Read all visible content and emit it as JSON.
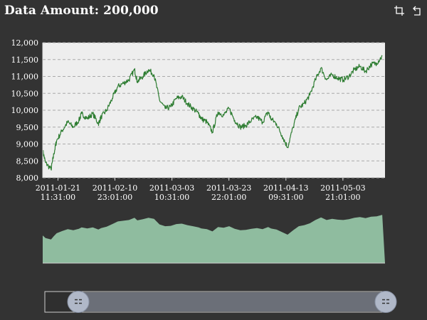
{
  "title": "Data Amount: 200,000",
  "toolbox": {
    "zoom_icon": "data-zoom-icon",
    "reset_icon": "zoom-reset-icon"
  },
  "colors": {
    "background": "#333333",
    "plot_background": "#eeeeee",
    "line": "#2e7d32",
    "overview_fill": "#8fbc9f",
    "slider_fill": "#6b6f78",
    "slider_handle": "#b0b8c8",
    "text": "#ffffff"
  },
  "chart_data": {
    "type": "line",
    "title": "Data Amount: 200,000",
    "xlabel": "",
    "ylabel": "",
    "ylim": [
      8000,
      12000
    ],
    "yticks": [
      "8,000",
      "8,500",
      "9,000",
      "9,500",
      "10,000",
      "10,500",
      "11,000",
      "11,500",
      "12,000"
    ],
    "ytick_values": [
      8000,
      8500,
      9000,
      9500,
      10000,
      10500,
      11000,
      11500,
      12000
    ],
    "xlim": [
      "2011-01-16 00:00",
      "2011-05-19 00:00"
    ],
    "xticks": [
      {
        "date": "2011-01-21",
        "time": "11:31:00",
        "at": "2011-01-21 11:31"
      },
      {
        "date": "2011-02-10",
        "time": "23:01:00",
        "at": "2011-02-10 23:01"
      },
      {
        "date": "2011-03-03",
        "time": "10:31:00",
        "at": "2011-03-03 10:31"
      },
      {
        "date": "2011-03-23",
        "time": "22:01:00",
        "at": "2011-03-23 22:01"
      },
      {
        "date": "2011-04-13",
        "time": "09:31:00",
        "at": "2011-04-13 09:31"
      },
      {
        "date": "2011-05-03",
        "time": "21:01:00",
        "at": "2011-05-03 21:01"
      }
    ],
    "grid": true,
    "series": [
      {
        "x": [
          "2011-01-16",
          "2011-01-17",
          "2011-01-19",
          "2011-01-20",
          "2011-01-21",
          "2011-01-23",
          "2011-01-25",
          "2011-01-27",
          "2011-01-29",
          "2011-01-30",
          "2011-02-01",
          "2011-02-03",
          "2011-02-05",
          "2011-02-06",
          "2011-02-08",
          "2011-02-10",
          "2011-02-12",
          "2011-02-14",
          "2011-02-16",
          "2011-02-18",
          "2011-02-19",
          "2011-02-21",
          "2011-02-23",
          "2011-02-25",
          "2011-02-27",
          "2011-03-01",
          "2011-03-03",
          "2011-03-05",
          "2011-03-07",
          "2011-03-09",
          "2011-03-11",
          "2011-03-13",
          "2011-03-14",
          "2011-03-16",
          "2011-03-18",
          "2011-03-20",
          "2011-03-22",
          "2011-03-24",
          "2011-03-26",
          "2011-03-28",
          "2011-03-30",
          "2011-04-01",
          "2011-04-03",
          "2011-04-05",
          "2011-04-07",
          "2011-04-08",
          "2011-04-10",
          "2011-04-12",
          "2011-04-14",
          "2011-04-16",
          "2011-04-18",
          "2011-04-20",
          "2011-04-22",
          "2011-04-24",
          "2011-04-26",
          "2011-04-28",
          "2011-04-30",
          "2011-05-02",
          "2011-05-04",
          "2011-05-06",
          "2011-05-08",
          "2011-05-10",
          "2011-05-12",
          "2011-05-14",
          "2011-05-16",
          "2011-05-18"
        ],
        "y": [
          8800,
          8450,
          8250,
          8700,
          9100,
          9400,
          9650,
          9500,
          9700,
          9900,
          9750,
          9900,
          9600,
          9800,
          10000,
          10350,
          10700,
          10800,
          10900,
          11200,
          10850,
          11000,
          11200,
          11050,
          10300,
          10050,
          10100,
          10350,
          10400,
          10200,
          10050,
          9900,
          9750,
          9650,
          9350,
          9950,
          9850,
          10050,
          9700,
          9500,
          9550,
          9700,
          9800,
          9650,
          9950,
          9750,
          9600,
          9250,
          8900,
          9500,
          10050,
          10200,
          10450,
          10900,
          11250,
          10900,
          11050,
          10950,
          10900,
          11000,
          11200,
          11300,
          11150,
          11350,
          11400,
          11600
        ]
      }
    ],
    "overview_y": [
      8800,
      8450,
      8250,
      8700,
      9100,
      9400,
      9650,
      9500,
      9700,
      9900,
      9750,
      9900,
      9600,
      9800,
      10000,
      10350,
      10700,
      10800,
      10900,
      11200,
      10850,
      11000,
      11200,
      11050,
      10300,
      10050,
      10100,
      10350,
      10400,
      10200,
      10050,
      9900,
      9750,
      9650,
      9350,
      9950,
      9850,
      10050,
      9700,
      9500,
      9550,
      9700,
      9800,
      9650,
      9950,
      9750,
      9600,
      9250,
      8900,
      9500,
      10050,
      10200,
      10450,
      10900,
      11250,
      10900,
      11050,
      10950,
      10900,
      11000,
      11200,
      11300,
      11150,
      11350,
      11400,
      11600
    ],
    "data_zoom": {
      "start_fraction": 0.0,
      "end_fraction": 1.0
    }
  }
}
